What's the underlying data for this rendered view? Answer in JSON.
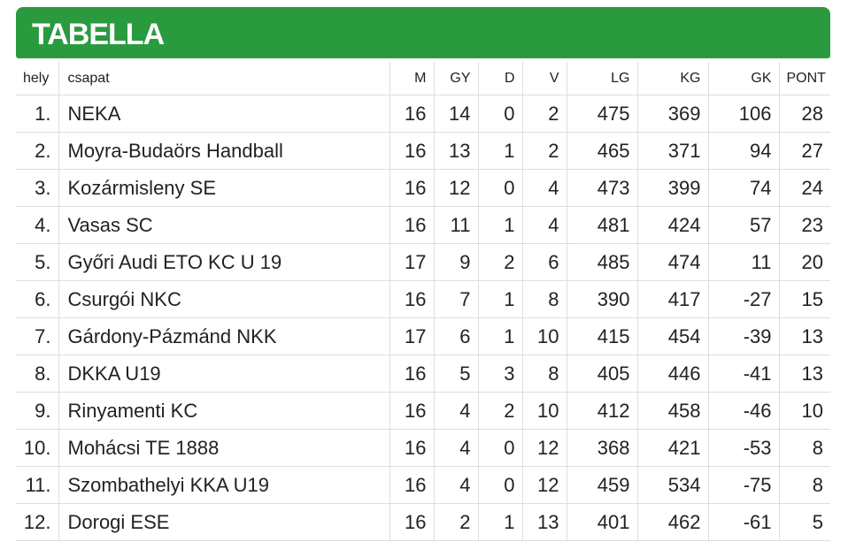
{
  "header": {
    "title": "TABELLA"
  },
  "table": {
    "columns": [
      "hely",
      "csapat",
      "M",
      "GY",
      "D",
      "V",
      "LG",
      "KG",
      "GK",
      "PONT"
    ],
    "rows": [
      [
        "1.",
        "NEKA",
        16,
        14,
        0,
        2,
        475,
        369,
        106,
        28
      ],
      [
        "2.",
        "Moyra-Budaörs Handball",
        16,
        13,
        1,
        2,
        465,
        371,
        94,
        27
      ],
      [
        "3.",
        "Kozármisleny SE",
        16,
        12,
        0,
        4,
        473,
        399,
        74,
        24
      ],
      [
        "4.",
        "Vasas SC",
        16,
        11,
        1,
        4,
        481,
        424,
        57,
        23
      ],
      [
        "5.",
        "Győri Audi ETO KC U 19",
        17,
        9,
        2,
        6,
        485,
        474,
        11,
        20
      ],
      [
        "6.",
        "Csurgói NKC",
        16,
        7,
        1,
        8,
        390,
        417,
        -27,
        15
      ],
      [
        "7.",
        "Gárdony-Pázmánd NKK",
        17,
        6,
        1,
        10,
        415,
        454,
        -39,
        13
      ],
      [
        "8.",
        "DKKA U19",
        16,
        5,
        3,
        8,
        405,
        446,
        -41,
        13
      ],
      [
        "9.",
        "Rinyamenti KC",
        16,
        4,
        2,
        10,
        412,
        458,
        -46,
        10
      ],
      [
        "10.",
        "Mohácsi TE 1888",
        16,
        4,
        0,
        12,
        368,
        421,
        -53,
        8
      ],
      [
        "11.",
        "Szombathelyi KKA U19",
        16,
        4,
        0,
        12,
        459,
        534,
        -75,
        8
      ],
      [
        "12.",
        "Dorogi ESE",
        16,
        2,
        1,
        13,
        401,
        462,
        -61,
        5
      ]
    ]
  }
}
